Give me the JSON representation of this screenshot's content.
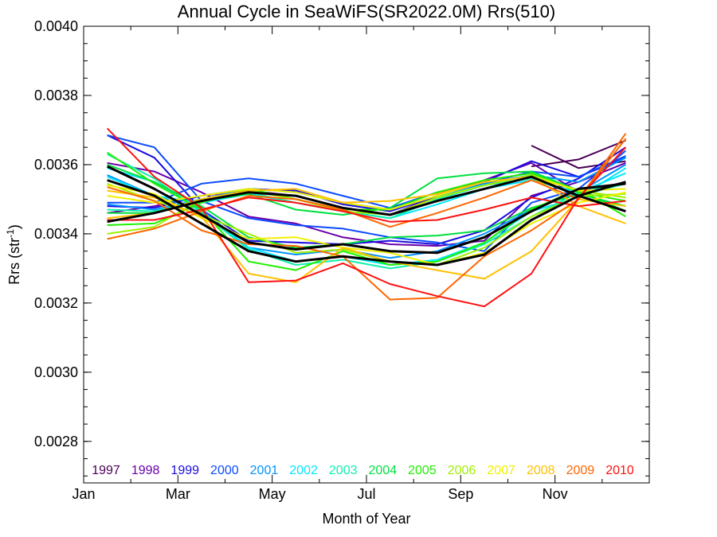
{
  "chart_data": {
    "type": "line",
    "title": "Annual Cycle in SeaWiFS(SR2022.0M) Rrs(510)",
    "xlabel": "Month of Year",
    "ylabel_main": "Rrs (str",
    "ylabel_sup": "-1",
    "ylabel_close": ")",
    "xlim": [
      0,
      12
    ],
    "ylim": [
      0.00268,
      0.004
    ],
    "x_ticks": [
      {
        "label": "Jan",
        "value": 0
      },
      {
        "label": "Mar",
        "value": 2
      },
      {
        "label": "May",
        "value": 4
      },
      {
        "label": "Jul",
        "value": 6
      },
      {
        "label": "Sep",
        "value": 8
      },
      {
        "label": "Nov",
        "value": 10
      }
    ],
    "y_ticks": [
      {
        "label": "0.0028",
        "value": 0.0028
      },
      {
        "label": "0.0030",
        "value": 0.003
      },
      {
        "label": "0.0032",
        "value": 0.0032
      },
      {
        "label": "0.0034",
        "value": 0.0034
      },
      {
        "label": "0.0036",
        "value": 0.0036
      },
      {
        "label": "0.0038",
        "value": 0.0038
      },
      {
        "label": "0.0040",
        "value": 0.004
      }
    ],
    "x": [
      0.5,
      1.5,
      2.5,
      3.5,
      4.5,
      5.5,
      6.5,
      7.5,
      8.5,
      9.5,
      10.5,
      11.5
    ],
    "series": [
      {
        "name": "1997",
        "color": "#4b0055",
        "group": "upper",
        "values": [
          null,
          null,
          null,
          null,
          null,
          null,
          null,
          null,
          null,
          0.003655,
          0.00359,
          0.00361
        ]
      },
      {
        "name": "1997",
        "color": "#4b0055",
        "group": "lower",
        "values": [
          null,
          null,
          null,
          null,
          null,
          null,
          null,
          null,
          null,
          0.003595,
          0.003615,
          0.00367
        ]
      },
      {
        "name": "1998",
        "color": "#6a00aa",
        "group": "upper",
        "values": [
          0.00346,
          0.00348,
          0.00351,
          0.003525,
          0.00351,
          0.003475,
          0.003455,
          0.00351,
          0.003555,
          0.003605,
          0.00352,
          0.00355
        ]
      },
      {
        "name": "1998",
        "color": "#6a00aa",
        "group": "lower",
        "values": [
          0.003605,
          0.00358,
          0.00352,
          0.00345,
          0.00343,
          0.00339,
          0.00337,
          0.003365,
          0.00338,
          0.00351,
          0.00355,
          0.003605
        ]
      },
      {
        "name": "1999",
        "color": "#1a0be0",
        "group": "upper",
        "values": [
          0.00348,
          0.003475,
          0.00351,
          0.00353,
          0.003525,
          0.003485,
          0.003465,
          0.00351,
          0.00355,
          0.00361,
          0.003565,
          0.00362
        ]
      },
      {
        "name": "1999",
        "color": "#1a0be0",
        "group": "lower",
        "values": [
          0.003685,
          0.00362,
          0.00347,
          0.00338,
          0.003375,
          0.00337,
          0.00338,
          0.00337,
          0.00341,
          0.003505,
          0.00356,
          0.00365
        ]
      },
      {
        "name": "2000",
        "color": "#0b4bff",
        "group": "upper",
        "values": [
          0.00349,
          0.00349,
          0.003545,
          0.00356,
          0.003545,
          0.00351,
          0.003475,
          0.00352,
          0.003545,
          0.00358,
          0.003565,
          0.003625
        ]
      },
      {
        "name": "2000",
        "color": "#0b4bff",
        "group": "lower",
        "values": [
          0.003685,
          0.00365,
          0.003495,
          0.003445,
          0.003425,
          0.003415,
          0.00339,
          0.003375,
          0.00335,
          0.00349,
          0.00353,
          0.00364
        ]
      },
      {
        "name": "2001",
        "color": "#0094ff",
        "group": "upper",
        "values": [
          0.003485,
          0.00347,
          0.0035,
          0.00353,
          0.00352,
          0.00349,
          0.00347,
          0.00351,
          0.003545,
          0.00357,
          0.00355,
          0.00362
        ]
      },
      {
        "name": "2001",
        "color": "#0094ff",
        "group": "lower",
        "values": [
          0.00357,
          0.00351,
          0.00347,
          0.00336,
          0.00334,
          0.003355,
          0.00333,
          0.00335,
          0.0034,
          0.00347,
          0.00352,
          0.0036
        ]
      },
      {
        "name": "2002",
        "color": "#00e8ff",
        "group": "upper",
        "values": [
          0.003565,
          0.00351,
          0.00349,
          0.003515,
          0.00349,
          0.003465,
          0.003445,
          0.003485,
          0.00353,
          0.003555,
          0.00352,
          0.003575
        ]
      },
      {
        "name": "2002",
        "color": "#00e8ff",
        "group": "lower",
        "values": [
          0.00359,
          0.00355,
          0.003465,
          0.00336,
          0.00332,
          0.003335,
          0.00331,
          0.003325,
          0.003375,
          0.003465,
          0.003505,
          0.00359
        ]
      },
      {
        "name": "2003",
        "color": "#10f0b0",
        "group": "upper",
        "values": [
          0.00347,
          0.003465,
          0.0035,
          0.00352,
          0.00349,
          0.003465,
          0.003445,
          0.0035,
          0.00354,
          0.00356,
          0.00351,
          0.003545
        ]
      },
      {
        "name": "2003",
        "color": "#10f0b0",
        "group": "lower",
        "values": [
          0.00363,
          0.00356,
          0.00346,
          0.003355,
          0.00331,
          0.003325,
          0.0033,
          0.00332,
          0.00337,
          0.00345,
          0.00352,
          0.003545
        ]
      },
      {
        "name": "2004",
        "color": "#00e040",
        "group": "upper",
        "values": [
          0.00346,
          0.00346,
          0.003495,
          0.003515,
          0.00347,
          0.003455,
          0.003475,
          0.00356,
          0.003575,
          0.00358,
          0.003525,
          0.003465
        ]
      },
      {
        "name": "2004",
        "color": "#00e040",
        "group": "lower",
        "values": [
          0.0036,
          0.00355,
          0.00348,
          0.00339,
          0.00336,
          0.00337,
          0.00339,
          0.003395,
          0.00341,
          0.003475,
          0.003515,
          0.00348
        ]
      },
      {
        "name": "2005",
        "color": "#20f000",
        "group": "upper",
        "values": [
          0.003425,
          0.00343,
          0.00349,
          0.00353,
          0.0035,
          0.00347,
          0.00347,
          0.00352,
          0.003555,
          0.003575,
          0.00352,
          0.003495
        ]
      },
      {
        "name": "2005",
        "color": "#20f000",
        "group": "lower",
        "values": [
          0.003635,
          0.003545,
          0.00347,
          0.00332,
          0.003295,
          0.00335,
          0.00331,
          0.00332,
          0.003375,
          0.00347,
          0.00353,
          0.00345
        ]
      },
      {
        "name": "2006",
        "color": "#a0f000",
        "group": "upper",
        "values": [
          0.0034,
          0.00342,
          0.0035,
          0.003525,
          0.0035,
          0.003465,
          0.003455,
          0.003505,
          0.00354,
          0.00357,
          0.003525,
          0.003505
        ]
      },
      {
        "name": "2006",
        "color": "#a0f000",
        "group": "lower",
        "values": [
          0.003545,
          0.003495,
          0.003455,
          0.0034,
          0.003345,
          0.003355,
          0.00332,
          0.00331,
          0.00336,
          0.00345,
          0.00351,
          0.003515
        ]
      },
      {
        "name": "2007",
        "color": "#f0f000",
        "group": "upper",
        "values": [
          0.00351,
          0.00349,
          0.00351,
          0.00353,
          0.00352,
          0.00349,
          0.00347,
          0.00351,
          0.00355,
          0.003565,
          0.003525,
          0.00353
        ]
      },
      {
        "name": "2007",
        "color": "#f0f000",
        "group": "lower",
        "values": [
          0.00354,
          0.003515,
          0.003445,
          0.003385,
          0.00339,
          0.00336,
          0.003345,
          0.00331,
          0.003345,
          0.00343,
          0.00349,
          0.00352
        ]
      },
      {
        "name": "2008",
        "color": "#ffc000",
        "group": "upper",
        "values": [
          0.003445,
          0.00346,
          0.0035,
          0.003525,
          0.00353,
          0.00349,
          0.003495,
          0.003515,
          0.00355,
          0.003565,
          0.00348,
          0.00343
        ]
      },
      {
        "name": "2008",
        "color": "#ffc000",
        "group": "lower",
        "values": [
          0.003525,
          0.003505,
          0.00345,
          0.003285,
          0.00326,
          0.00336,
          0.00332,
          0.003295,
          0.00327,
          0.00335,
          0.0035,
          0.00348
        ]
      },
      {
        "name": "2009",
        "color": "#ff6600",
        "group": "upper",
        "values": [
          0.003385,
          0.003415,
          0.003465,
          0.00351,
          0.0035,
          0.00347,
          0.00342,
          0.00346,
          0.003505,
          0.003555,
          0.0035,
          0.003675
        ]
      },
      {
        "name": "2009",
        "color": "#ff6600",
        "group": "lower",
        "values": [
          0.003535,
          0.003495,
          0.00341,
          0.00337,
          0.003365,
          0.003335,
          0.00321,
          0.003215,
          0.003335,
          0.00341,
          0.0035,
          0.00369
        ]
      },
      {
        "name": "2010",
        "color": "#ff1010",
        "group": "upper",
        "values": [
          0.00344,
          0.00344,
          0.00347,
          0.003505,
          0.00349,
          0.003465,
          0.003435,
          0.00344,
          0.00347,
          0.003505,
          0.00348,
          0.003495
        ]
      },
      {
        "name": "2010",
        "color": "#ff1010",
        "group": "lower",
        "values": [
          0.003705,
          0.003565,
          0.003475,
          0.00326,
          0.003265,
          0.003315,
          0.003255,
          0.00322,
          0.00319,
          0.003285,
          0.003505,
          0.00365
        ]
      },
      {
        "name": "",
        "color": "#000000",
        "group": "mean-upper",
        "thick": true,
        "values": [
          0.003435,
          0.00346,
          0.003495,
          0.00352,
          0.00351,
          0.003475,
          0.003455,
          0.003495,
          0.00353,
          0.003565,
          0.00351,
          0.00355
        ]
      },
      {
        "name": "",
        "color": "#000000",
        "group": "mean-lower",
        "thick": true,
        "values": [
          0.003595,
          0.00353,
          0.003455,
          0.003375,
          0.003355,
          0.00337,
          0.00335,
          0.003345,
          0.00339,
          0.003465,
          0.00353,
          0.003545
        ]
      },
      {
        "name": "",
        "color": "#000000",
        "group": "mean-lower-2",
        "thick": true,
        "values": [
          0.003555,
          0.00351,
          0.00343,
          0.00335,
          0.00332,
          0.003335,
          0.00332,
          0.00331,
          0.00334,
          0.00344,
          0.00351,
          0.003465
        ]
      }
    ],
    "legend": [
      {
        "label": "1997",
        "color": "#4b0055"
      },
      {
        "label": "1998",
        "color": "#6a00aa"
      },
      {
        "label": "1999",
        "color": "#1a0be0"
      },
      {
        "label": "2000",
        "color": "#0b4bff"
      },
      {
        "label": "2001",
        "color": "#0094ff"
      },
      {
        "label": "2002",
        "color": "#00e8ff"
      },
      {
        "label": "2003",
        "color": "#10f0b0"
      },
      {
        "label": "2004",
        "color": "#00e040"
      },
      {
        "label": "2005",
        "color": "#20f000"
      },
      {
        "label": "2006",
        "color": "#a0f000"
      },
      {
        "label": "2007",
        "color": "#f0f000"
      },
      {
        "label": "2008",
        "color": "#ffc000"
      },
      {
        "label": "2009",
        "color": "#ff6600"
      },
      {
        "label": "2010",
        "color": "#ff1010"
      }
    ],
    "legend_placement": "bottom",
    "grid": false
  }
}
